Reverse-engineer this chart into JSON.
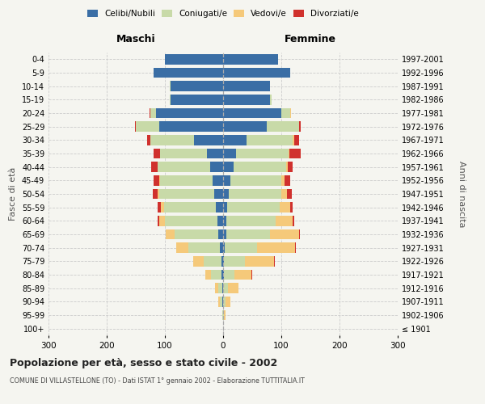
{
  "age_groups": [
    "100+",
    "95-99",
    "90-94",
    "85-89",
    "80-84",
    "75-79",
    "70-74",
    "65-69",
    "60-64",
    "55-59",
    "50-54",
    "45-49",
    "40-44",
    "35-39",
    "30-34",
    "25-29",
    "20-24",
    "15-19",
    "10-14",
    "5-9",
    "0-4"
  ],
  "birth_years": [
    "≤ 1901",
    "1902-1906",
    "1907-1911",
    "1912-1916",
    "1917-1921",
    "1922-1926",
    "1927-1931",
    "1932-1936",
    "1937-1941",
    "1942-1946",
    "1947-1951",
    "1952-1956",
    "1957-1961",
    "1962-1966",
    "1967-1971",
    "1972-1976",
    "1977-1981",
    "1982-1986",
    "1987-1991",
    "1992-1996",
    "1997-2001"
  ],
  "maschi": {
    "celibi": [
      0,
      0,
      1,
      1,
      3,
      3,
      5,
      8,
      10,
      12,
      15,
      18,
      22,
      28,
      50,
      110,
      115,
      90,
      90,
      120,
      100
    ],
    "coniugati": [
      0,
      2,
      5,
      8,
      18,
      30,
      55,
      75,
      90,
      90,
      95,
      90,
      90,
      80,
      75,
      40,
      10,
      2,
      1,
      0,
      0
    ],
    "vedovi": [
      0,
      0,
      2,
      5,
      10,
      18,
      20,
      15,
      10,
      5,
      3,
      2,
      1,
      1,
      0,
      0,
      0,
      0,
      0,
      0,
      0
    ],
    "divorziati": [
      0,
      0,
      0,
      0,
      0,
      1,
      1,
      1,
      2,
      5,
      8,
      10,
      10,
      10,
      5,
      1,
      1,
      0,
      0,
      0,
      0
    ]
  },
  "femmine": {
    "nubili": [
      0,
      0,
      0,
      0,
      1,
      2,
      3,
      5,
      5,
      7,
      10,
      12,
      18,
      22,
      40,
      75,
      100,
      80,
      80,
      115,
      95
    ],
    "coniugate": [
      0,
      2,
      4,
      8,
      18,
      35,
      55,
      75,
      85,
      90,
      90,
      88,
      90,
      90,
      80,
      55,
      15,
      3,
      1,
      0,
      0
    ],
    "vedove": [
      0,
      2,
      8,
      18,
      30,
      50,
      65,
      50,
      30,
      18,
      10,
      5,
      3,
      2,
      2,
      1,
      1,
      0,
      0,
      0,
      0
    ],
    "divorziate": [
      0,
      0,
      1,
      1,
      1,
      2,
      2,
      2,
      2,
      5,
      8,
      10,
      8,
      20,
      8,
      3,
      1,
      0,
      0,
      0,
      0
    ]
  },
  "colors": {
    "celibi_nubili": "#3a6ea5",
    "coniugati": "#c8daa8",
    "vedovi": "#f5c97a",
    "divorziati": "#d0312d"
  },
  "xlim": 300,
  "title": "Popolazione per età, sesso e stato civile - 2002",
  "subtitle": "COMUNE DI VILLASTELLONE (TO) - Dati ISTAT 1° gennaio 2002 - Elaborazione TUTTITALIA.IT",
  "ylabel_left": "Fasce di età",
  "ylabel_right": "Anni di nascita",
  "xlabel_left": "Maschi",
  "xlabel_right": "Femmine",
  "bg_color": "#f5f5f0",
  "grid_color": "#cccccc"
}
